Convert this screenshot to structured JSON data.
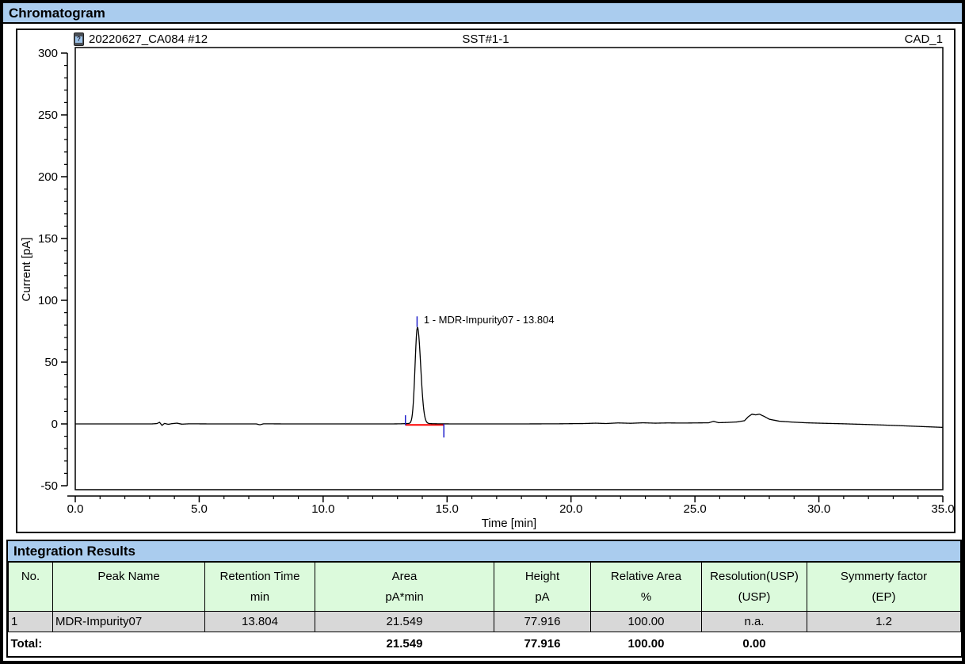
{
  "title": "Chromatogram",
  "chart": {
    "injection_label": "20220627_CA084 #12",
    "injection_icon": "vial-question-icon",
    "sample_label": "SST#1-1",
    "channel_label": "CAD_1"
  },
  "chart_data": {
    "type": "line",
    "xlabel": "Time [min]",
    "ylabel": "Current [pA]",
    "xlim": [
      0,
      35
    ],
    "ylim": [
      -50,
      300
    ],
    "x_major_ticks": [
      0,
      5,
      10,
      15,
      20,
      25,
      30,
      35
    ],
    "x_tick_labels": [
      "0.0",
      "5.0",
      "10.0",
      "15.0",
      "20.0",
      "25.0",
      "30.0",
      "35.0"
    ],
    "x_minor_step": 1,
    "y_major_ticks": [
      -50,
      0,
      50,
      100,
      150,
      200,
      250,
      300
    ],
    "y_tick_labels": [
      "-50",
      "0",
      "50",
      "100",
      "150",
      "200",
      "250",
      "300"
    ],
    "y_minor_step": 10,
    "grid": false,
    "series": [
      {
        "name": "CAD_1",
        "color": "#000000",
        "baseline_anchors": [
          [
            0,
            0
          ],
          [
            0.5,
            0
          ],
          [
            1.5,
            0
          ],
          [
            2.5,
            0
          ],
          [
            3.1,
            0
          ],
          [
            3.3,
            0.3
          ],
          [
            3.4,
            1.3
          ],
          [
            3.5,
            -1.2
          ],
          [
            3.6,
            0.4
          ],
          [
            3.75,
            -0.3
          ],
          [
            3.9,
            0.2
          ],
          [
            4.1,
            0.6
          ],
          [
            4.3,
            -0.2
          ],
          [
            4.6,
            0.1
          ],
          [
            5.5,
            0
          ],
          [
            6.5,
            0
          ],
          [
            7.3,
            0
          ],
          [
            7.45,
            -0.7
          ],
          [
            7.6,
            0.1
          ],
          [
            8.5,
            0
          ],
          [
            10,
            0
          ],
          [
            11.5,
            0
          ],
          [
            12.8,
            0
          ],
          [
            13.15,
            0.1
          ],
          [
            13.4,
            0.3
          ],
          [
            14.1,
            0.3
          ],
          [
            14.6,
            0.1
          ],
          [
            15.2,
            0
          ],
          [
            16.5,
            0
          ],
          [
            18,
            0
          ],
          [
            19.5,
            0.1
          ],
          [
            20.5,
            0.3
          ],
          [
            21,
            0.6
          ],
          [
            21.4,
            0.3
          ],
          [
            21.9,
            0.8
          ],
          [
            22.4,
            0.5
          ],
          [
            22.9,
            0.9
          ],
          [
            23.4,
            0.6
          ],
          [
            23.9,
            0.8
          ],
          [
            24.5,
            0.7
          ],
          [
            25,
            0.8
          ],
          [
            25.55,
            0.9
          ],
          [
            25.75,
            2.1
          ],
          [
            25.95,
            1.0
          ],
          [
            26.3,
            1.2
          ],
          [
            26.7,
            1.6
          ],
          [
            27.0,
            2.6
          ],
          [
            27.15,
            5.8
          ],
          [
            27.3,
            7.9
          ],
          [
            27.45,
            7.3
          ],
          [
            27.6,
            7.9
          ],
          [
            27.8,
            6.0
          ],
          [
            28.0,
            3.8
          ],
          [
            28.4,
            2.2
          ],
          [
            28.9,
            1.5
          ],
          [
            29.5,
            0.9
          ],
          [
            30.2,
            0.5
          ],
          [
            31,
            0.1
          ],
          [
            32,
            -0.5
          ],
          [
            33,
            -1.2
          ],
          [
            34,
            -2.0
          ],
          [
            35,
            -2.8
          ]
        ],
        "peak": {
          "retention_time_min": 13.804,
          "height_pa": 77.916,
          "sigma_left_min": 0.095,
          "sigma_right_min": 0.13
        }
      }
    ],
    "integration": {
      "start_min": 13.32,
      "end_min": 14.87,
      "baseline_y_pa": -0.8,
      "baseline_color": "#ff0000",
      "marker_color": "#2222cc",
      "start_marker_pa": [
        -1,
        7
      ],
      "end_marker_pa": [
        0,
        -11
      ],
      "apex_marker_pa": [
        78.5,
        87
      ],
      "apex_marker_x_min": 13.79
    },
    "peak_annotation": {
      "text": "1 - MDR-Impurity07 - 13.804",
      "label_y_pa": 84
    }
  },
  "table": {
    "title": "Integration Results",
    "columns": [
      {
        "name": "No.",
        "unit": ""
      },
      {
        "name": "Peak Name",
        "unit": ""
      },
      {
        "name": "Retention Time",
        "unit": "min"
      },
      {
        "name": "Area",
        "unit": "pA*min"
      },
      {
        "name": "Height",
        "unit": "pA"
      },
      {
        "name": "Relative Area",
        "unit": "%"
      },
      {
        "name": "Resolution(USP)",
        "unit": "(USP)"
      },
      {
        "name": "Symmerty factor (EP)",
        "unit": ""
      }
    ],
    "rows": [
      [
        "1",
        "MDR-Impurity07",
        "13.804",
        "21.549",
        "77.916",
        "100.00",
        "n.a.",
        "1.2"
      ]
    ],
    "total": {
      "label": "Total:",
      "area": "21.549",
      "height": "77.916",
      "relative_area": "100.00",
      "resolution": "0.00"
    }
  },
  "colors": {
    "panel_blue": "#aaccee",
    "header_green": "#dcfadc",
    "row_gray": "#d8d8d8",
    "trace": "#000000",
    "integration_baseline": "#ff0000",
    "marker_blue": "#2222cc"
  }
}
